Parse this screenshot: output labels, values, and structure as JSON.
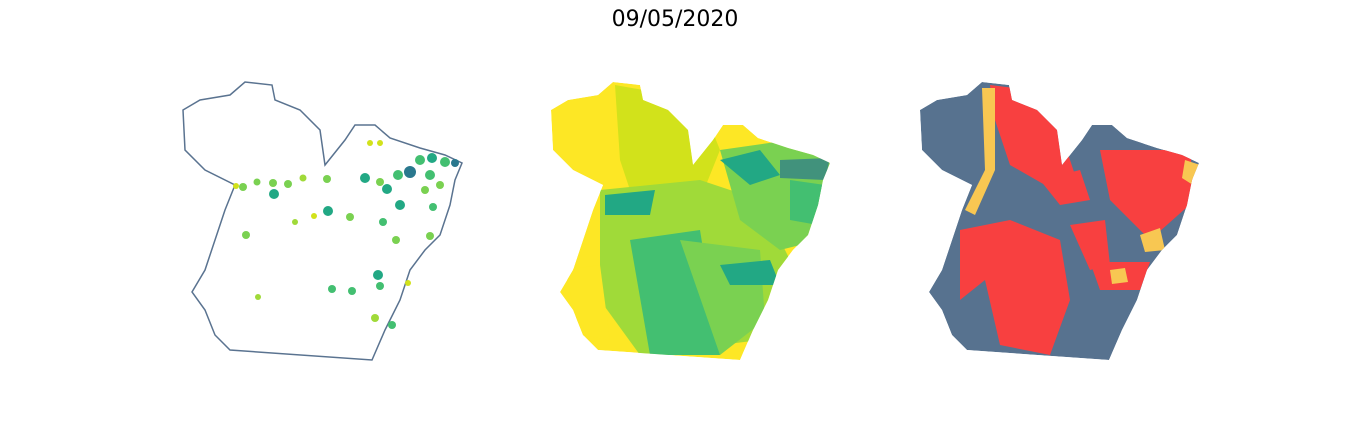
{
  "title": "09/05/2020"
}
